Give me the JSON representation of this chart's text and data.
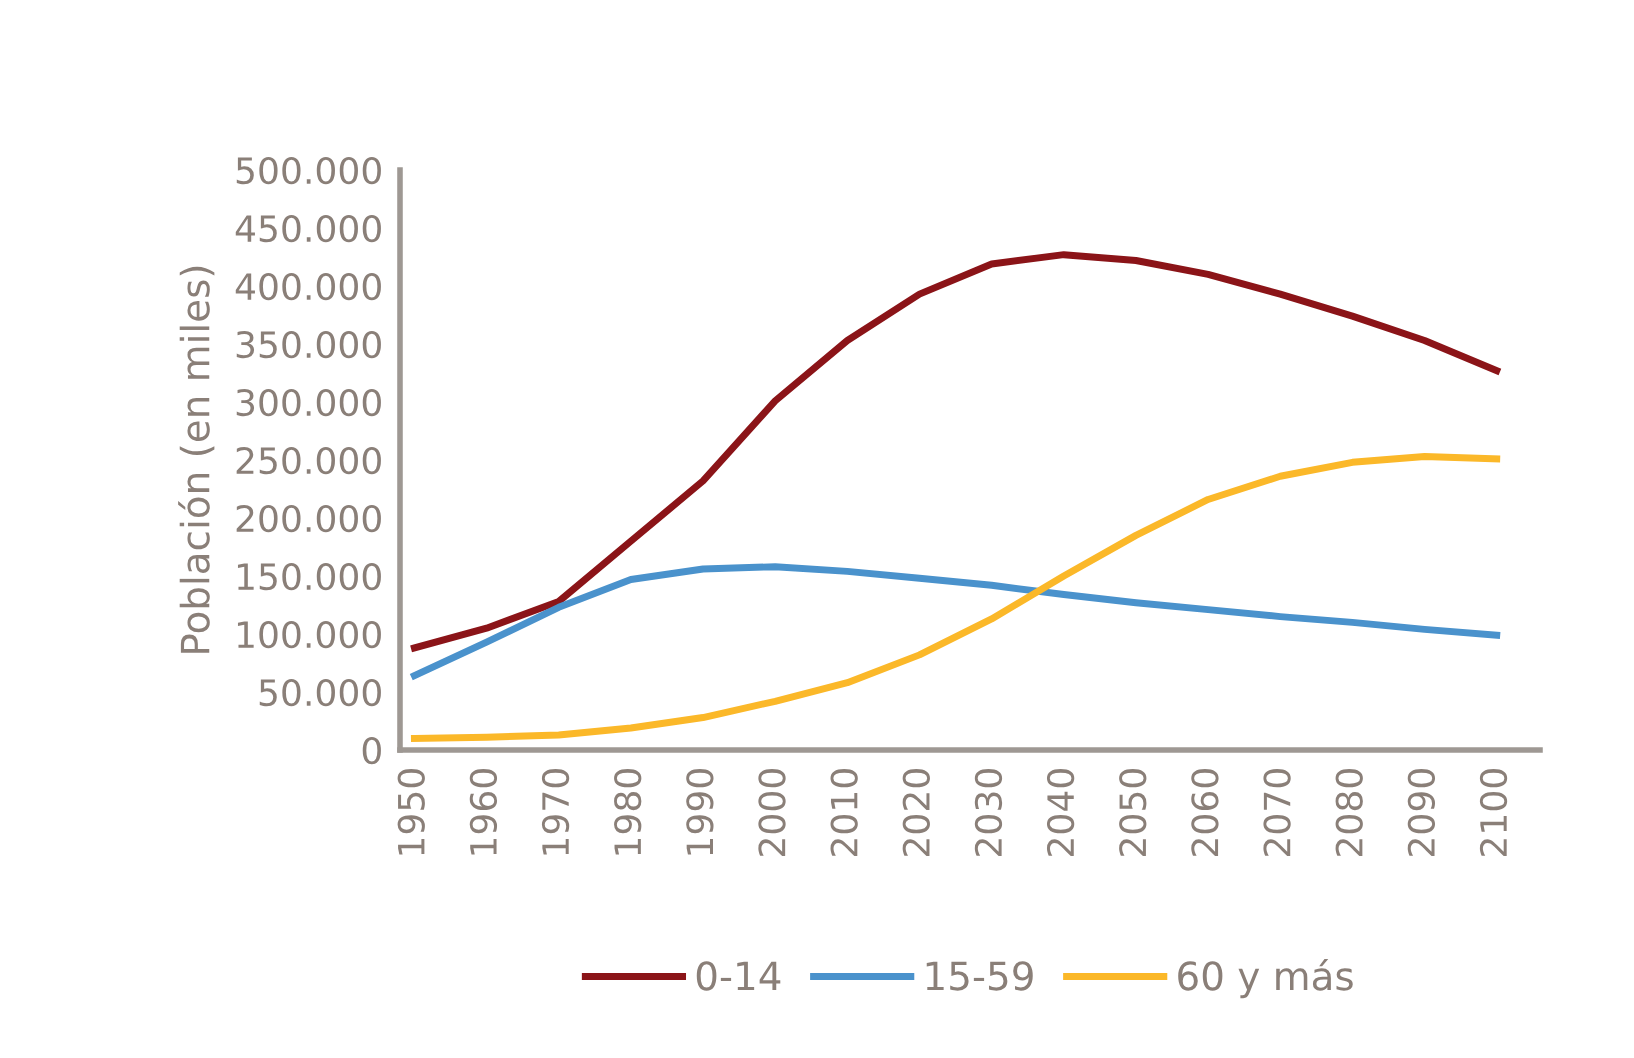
{
  "chart_data": {
    "type": "line",
    "ylabel": "Población (en miles)",
    "x": [
      1950,
      1960,
      1970,
      1980,
      1990,
      2000,
      2010,
      2020,
      2030,
      2040,
      2050,
      2060,
      2070,
      2080,
      2090,
      2100
    ],
    "xlim": [
      1948,
      2106
    ],
    "xticks": [
      1950,
      1960,
      1970,
      1980,
      1990,
      2000,
      2010,
      2020,
      2030,
      2040,
      2050,
      2060,
      2070,
      2080,
      2090,
      2100
    ],
    "ylim": [
      0,
      500000
    ],
    "yticks": [
      {
        "value": 0,
        "label": "0"
      },
      {
        "value": 50000,
        "label": "50.000"
      },
      {
        "value": 100000,
        "label": "100.000"
      },
      {
        "value": 150000,
        "label": "150.000"
      },
      {
        "value": 200000,
        "label": "200.000"
      },
      {
        "value": 250000,
        "label": "250.000"
      },
      {
        "value": 300000,
        "label": "300.000"
      },
      {
        "value": 350000,
        "label": "350.000"
      },
      {
        "value": 400000,
        "label": "400.000"
      },
      {
        "value": 450000,
        "label": "450.000"
      },
      {
        "value": 500000,
        "label": "500.000"
      }
    ],
    "grid": false,
    "legend": "bottom",
    "marker": "none",
    "line_style": "solid",
    "series": [
      {
        "name": "0-14",
        "color": "#8b1418",
        "values": [
          88000,
          105000,
          128000,
          180000,
          232000,
          301000,
          353000,
          393000,
          419000,
          427000,
          422000,
          410000,
          393000,
          374000,
          353000,
          327000
        ]
      },
      {
        "name": "15-59",
        "color": "#4a92cc",
        "values": [
          64000,
          93000,
          123000,
          147000,
          156000,
          158000,
          154000,
          148000,
          142000,
          134000,
          127000,
          121000,
          115000,
          110000,
          104000,
          99000
        ]
      },
      {
        "name": "60 y más",
        "color": "#fbb829",
        "values": [
          10000,
          11000,
          13000,
          19000,
          28000,
          42000,
          58000,
          82000,
          113000,
          150000,
          185000,
          216000,
          236000,
          248000,
          253000,
          251000
        ]
      }
    ]
  }
}
